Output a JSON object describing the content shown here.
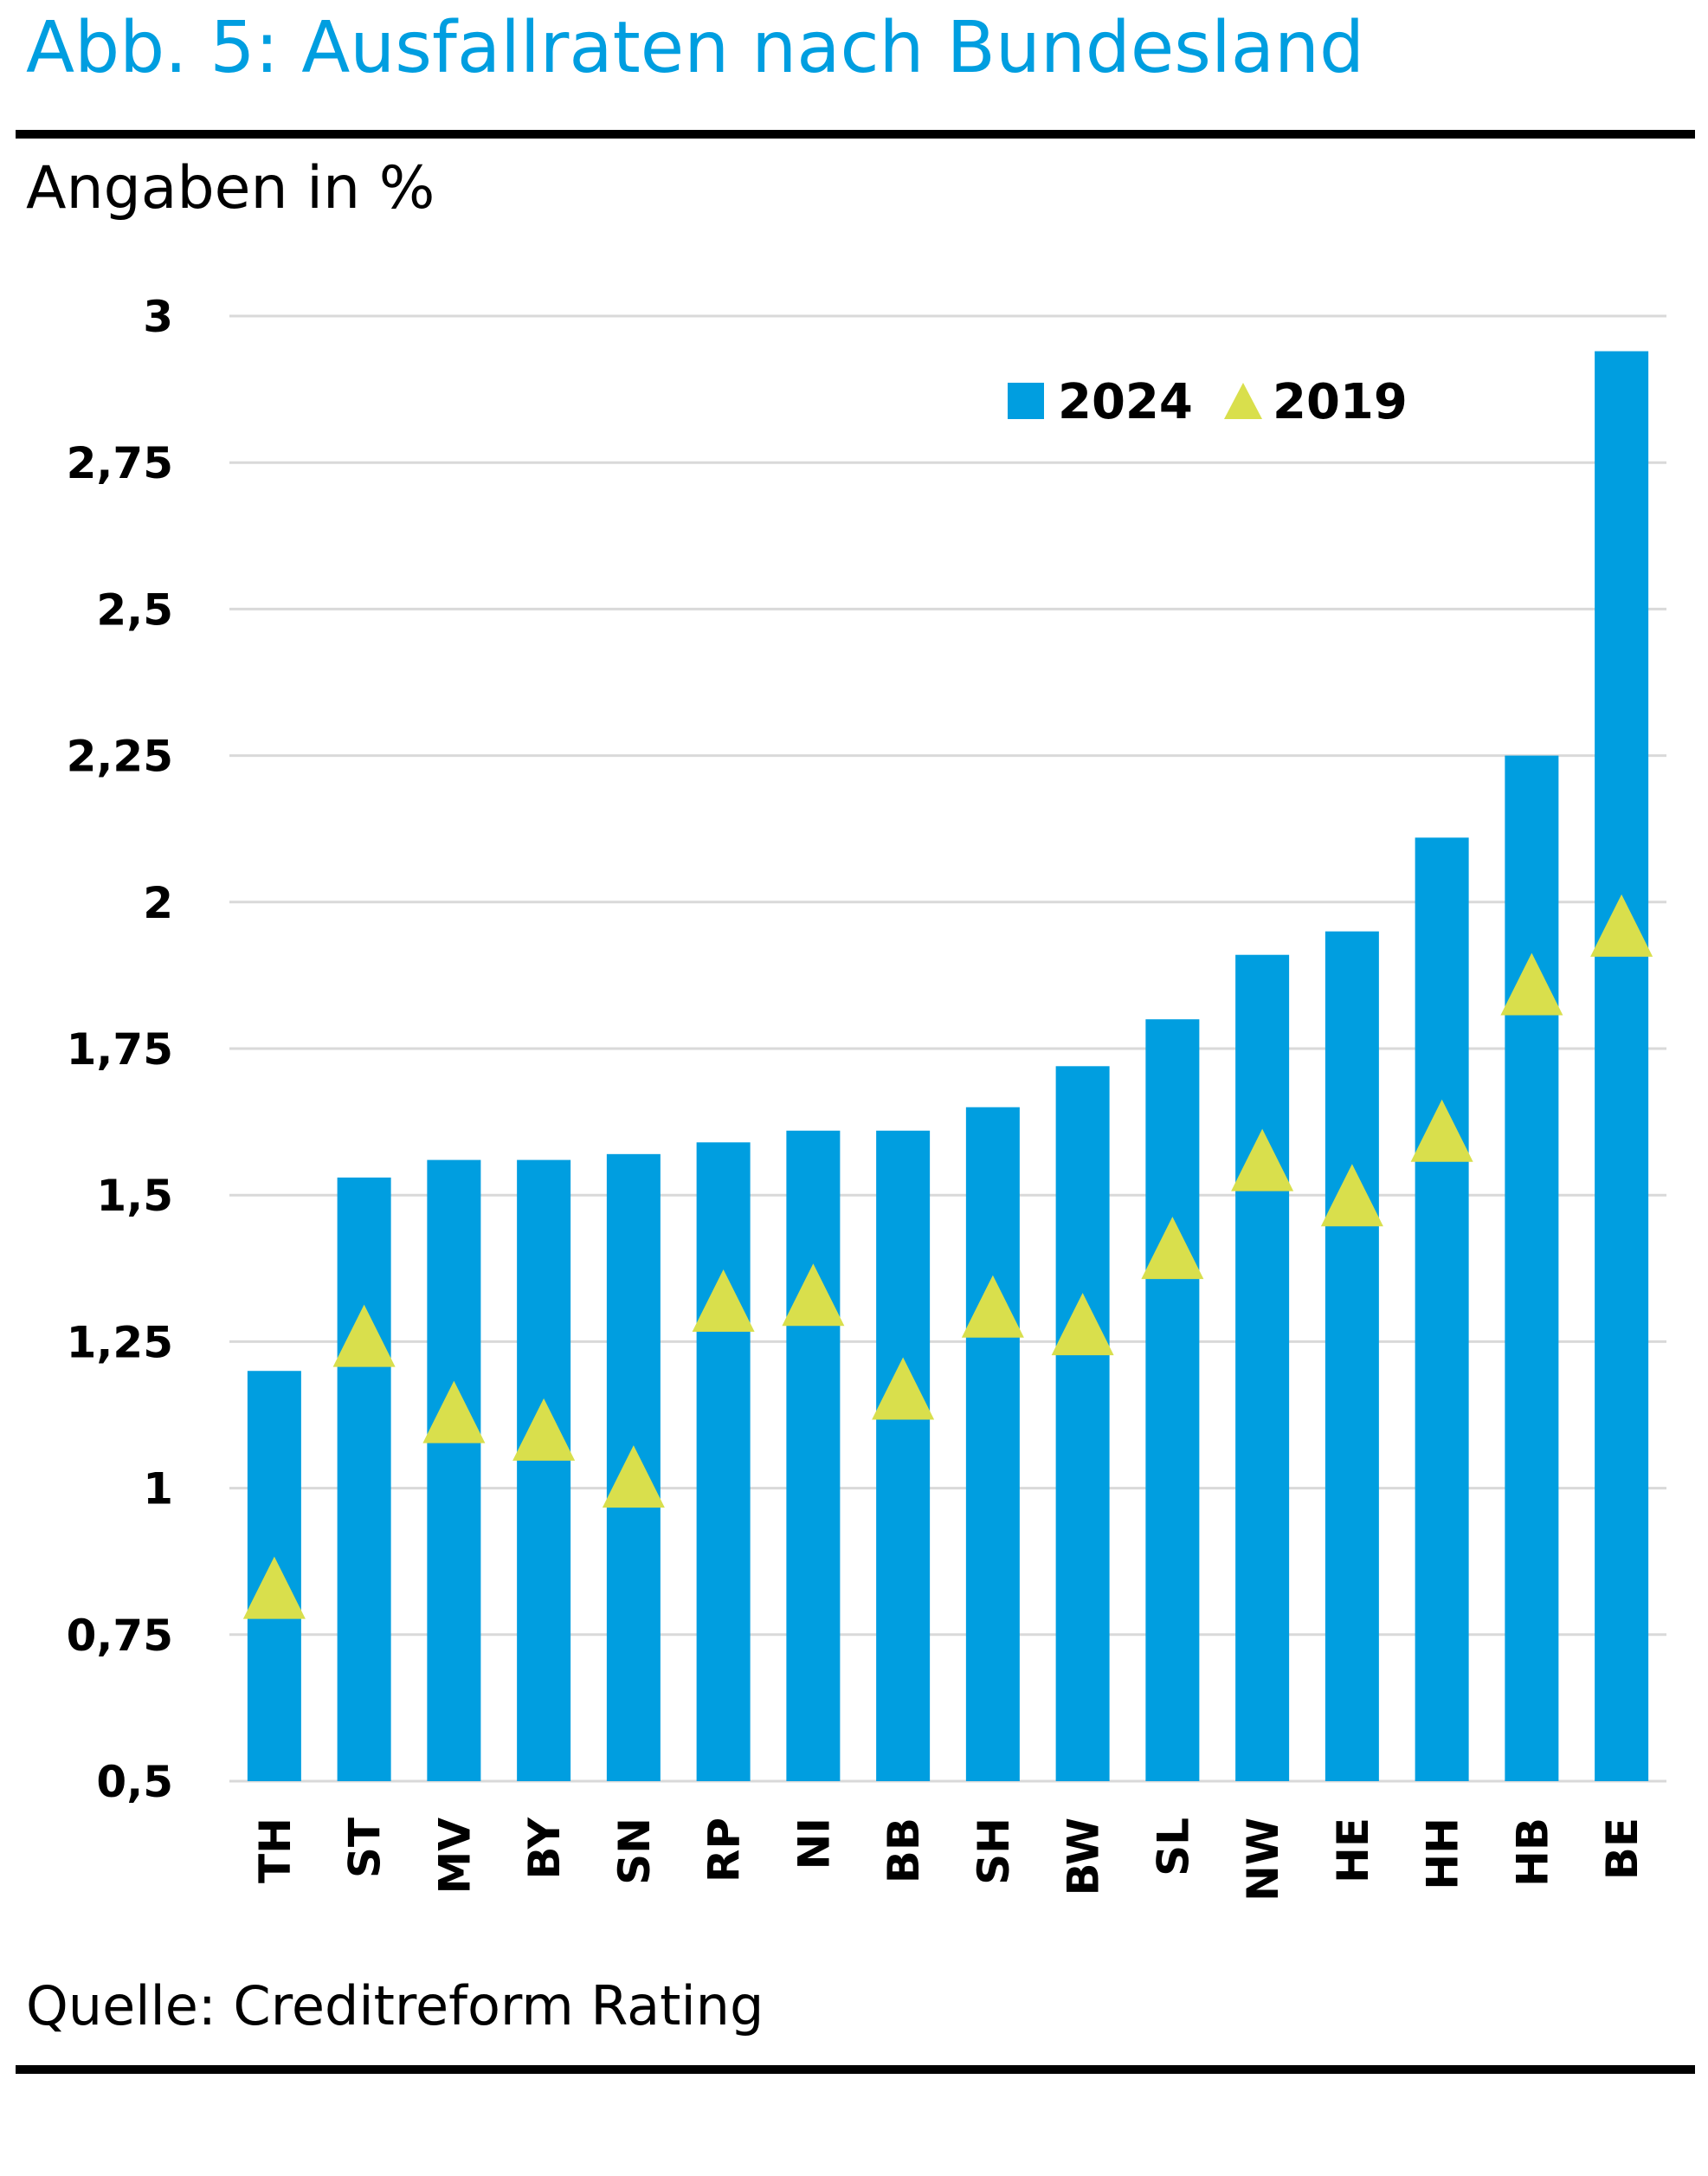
{
  "header": {
    "title": "Abb. 5: Ausfallraten nach Bundesland",
    "subtitle": "Angaben in %"
  },
  "footer": {
    "source": "Quelle: Creditreform Rating"
  },
  "colors": {
    "bar_2024": "#009ee0",
    "marker_2019": "#d9df4c",
    "grid": "#d9d9d9",
    "title": "#009ee0"
  },
  "chart_data": {
    "type": "bar",
    "categories": [
      "TH",
      "ST",
      "MV",
      "BY",
      "SN",
      "RP",
      "NI",
      "BB",
      "SH",
      "BW",
      "SL",
      "NW",
      "HE",
      "HH",
      "HB",
      "BE"
    ],
    "series": [
      {
        "name": "2024",
        "kind": "bar",
        "values": [
          1.2,
          1.53,
          1.56,
          1.56,
          1.57,
          1.59,
          1.61,
          1.61,
          1.65,
          1.72,
          1.8,
          1.91,
          1.95,
          2.11,
          2.25,
          2.94
        ]
      },
      {
        "name": "2019",
        "kind": "triangle-marker",
        "values": [
          0.83,
          1.26,
          1.13,
          1.1,
          1.02,
          1.32,
          1.33,
          1.17,
          1.31,
          1.28,
          1.41,
          1.56,
          1.5,
          1.61,
          1.86,
          1.96
        ]
      }
    ],
    "yticks": [
      "0,5",
      "0,75",
      "1",
      "1,25",
      "1,5",
      "1,75",
      "2",
      "2,25",
      "2,5",
      "2,75",
      "3"
    ],
    "ylim": [
      0.5,
      3
    ],
    "grid": "horizontal",
    "legend": "top-right",
    "legend_labels": [
      "2024",
      "2019"
    ]
  }
}
